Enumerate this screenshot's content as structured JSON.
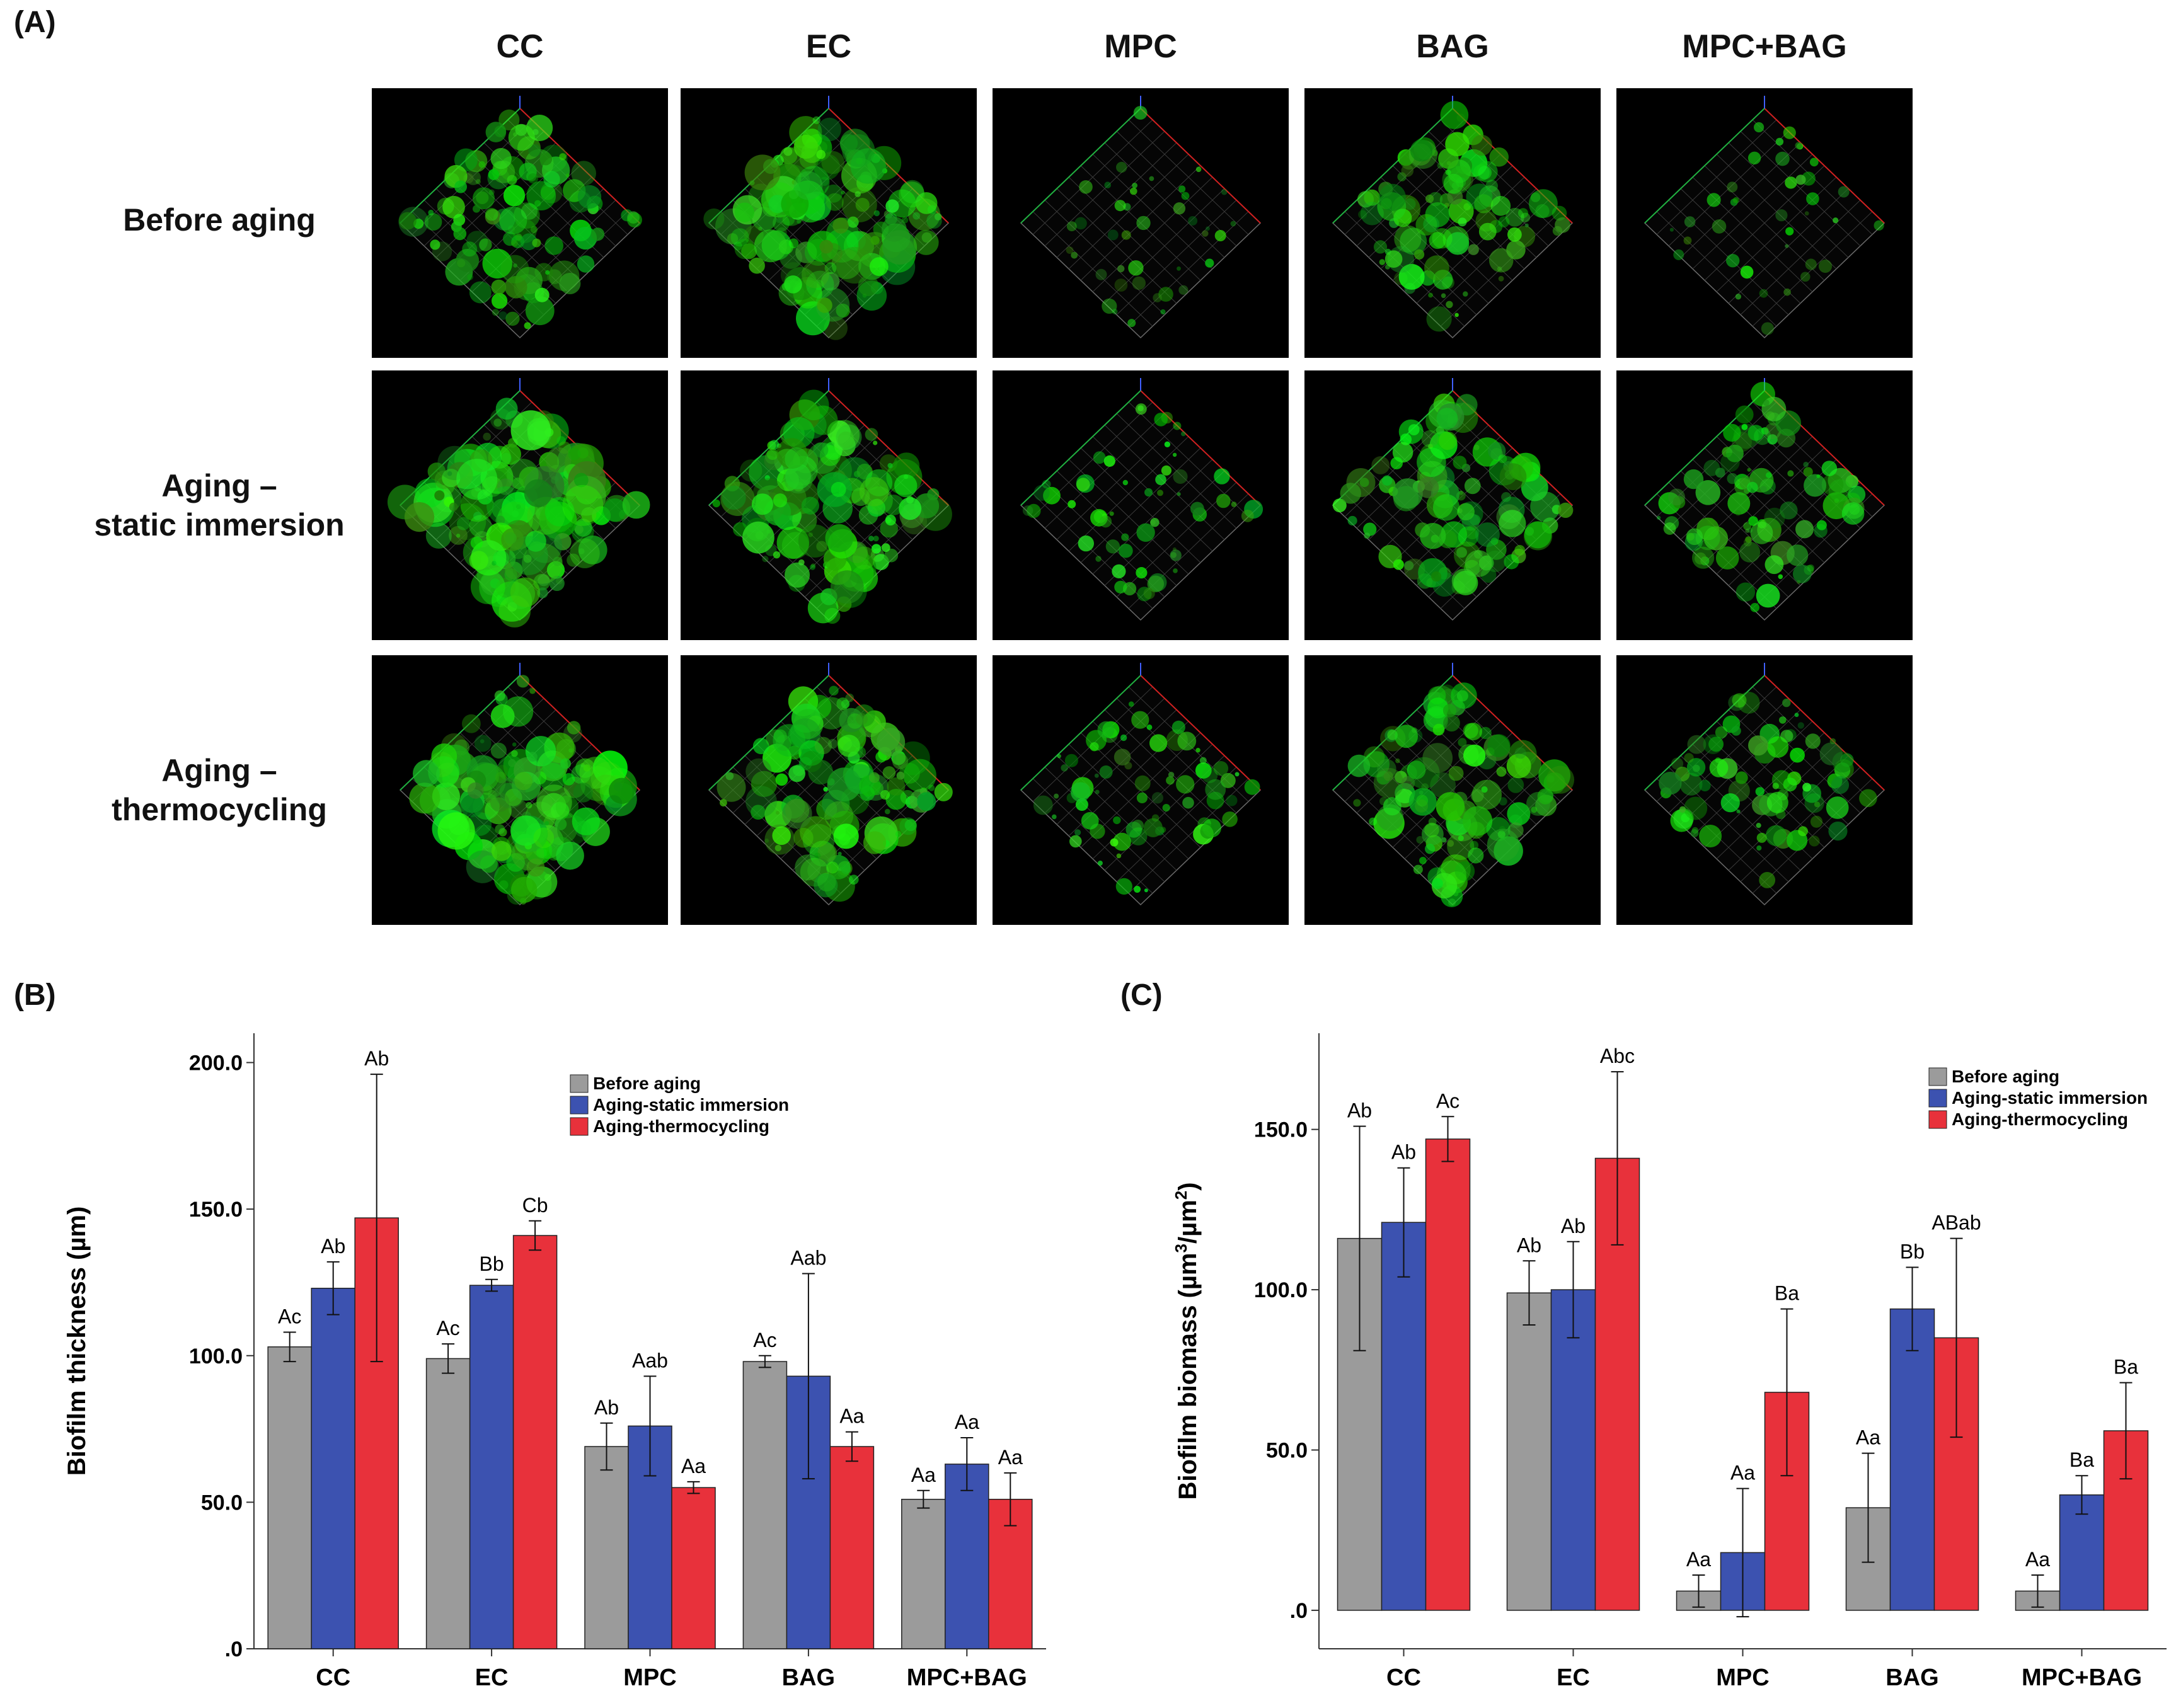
{
  "panel_a": {
    "label": "(A)",
    "columns": [
      "CC",
      "EC",
      "MPC",
      "BAG",
      "MPC+BAG"
    ],
    "rows": [
      {
        "line1": "Before aging",
        "line2": ""
      },
      {
        "line1": "Aging –",
        "line2": "static immersion"
      },
      {
        "line1": "Aging –",
        "line2": "thermocycling"
      }
    ],
    "image_desc": "3D confocal biofilm reconstruction (green fluorescence)",
    "green_density": [
      [
        0.55,
        0.75,
        0.12,
        0.5,
        0.1
      ],
      [
        0.85,
        0.7,
        0.22,
        0.55,
        0.45
      ],
      [
        0.75,
        0.65,
        0.3,
        0.6,
        0.35
      ]
    ]
  },
  "colors": {
    "before": "#9b9b9b",
    "static": "#3c52b0",
    "thermo": "#e8313b"
  },
  "chart_data": [
    {
      "type": "bar",
      "panel_label": "(B)",
      "title": "",
      "xlabel": "",
      "ylabel": "Biofilm thickness (µm)",
      "ylim": [
        0,
        210
      ],
      "yticks": [
        0,
        50,
        100,
        150,
        200
      ],
      "ytick_labels": [
        ".0",
        "50.0",
        "100.0",
        "150.0",
        "200.0"
      ],
      "categories": [
        "CC",
        "EC",
        "MPC",
        "BAG",
        "MPC+BAG"
      ],
      "legend_position": "top-right",
      "series": [
        {
          "name": "Before aging",
          "values": [
            103,
            99,
            69,
            98,
            51
          ],
          "errors": [
            5,
            5,
            8,
            2,
            3
          ],
          "labels": [
            "Ac",
            "Ac",
            "Ab",
            "Ac",
            "Aa"
          ]
        },
        {
          "name": "Aging-static immersion",
          "values": [
            123,
            124,
            76,
            93,
            63
          ],
          "errors": [
            9,
            2,
            17,
            35,
            9
          ],
          "labels": [
            "Ab",
            "Bb",
            "Aab",
            "Aab",
            "Aa"
          ]
        },
        {
          "name": "Aging-thermocycling",
          "values": [
            147,
            141,
            55,
            69,
            51
          ],
          "errors": [
            49,
            5,
            2,
            5,
            9
          ],
          "labels": [
            "Ab",
            "Cb",
            "Aa",
            "Aa",
            "Aa"
          ]
        }
      ]
    },
    {
      "type": "bar",
      "panel_label": "(C)",
      "title": "",
      "xlabel": "",
      "ylabel_prefix": "Biofilm biomass (µm",
      "ylabel_sup1": "3",
      "ylabel_mid": "/µm",
      "ylabel_sup2": "2",
      "ylabel_suffix": ")",
      "ylim": [
        -12,
        180
      ],
      "yticks": [
        0,
        50,
        100,
        150
      ],
      "ytick_labels": [
        ".0",
        "50.0",
        "100.0",
        "150.0"
      ],
      "categories": [
        "CC",
        "EC",
        "MPC",
        "BAG",
        "MPC+BAG"
      ],
      "legend_position": "top-right",
      "series": [
        {
          "name": "Before aging",
          "values": [
            116,
            99,
            6,
            32,
            6
          ],
          "errors": [
            35,
            10,
            5,
            17,
            5
          ],
          "labels": [
            "Ab",
            "Ab",
            "Aa",
            "Aa",
            "Aa"
          ]
        },
        {
          "name": "Aging-static immersion",
          "values": [
            121,
            100,
            18,
            94,
            36
          ],
          "errors": [
            17,
            15,
            20,
            13,
            6
          ],
          "labels": [
            "Ab",
            "Ab",
            "Aa",
            "Bb",
            "Ba"
          ]
        },
        {
          "name": "Aging-thermocycling",
          "values": [
            147,
            141,
            68,
            85,
            56
          ],
          "errors": [
            7,
            27,
            26,
            31,
            15
          ],
          "labels": [
            "Ac",
            "Abc",
            "Ba",
            "ABab",
            "Ba"
          ]
        }
      ]
    }
  ]
}
